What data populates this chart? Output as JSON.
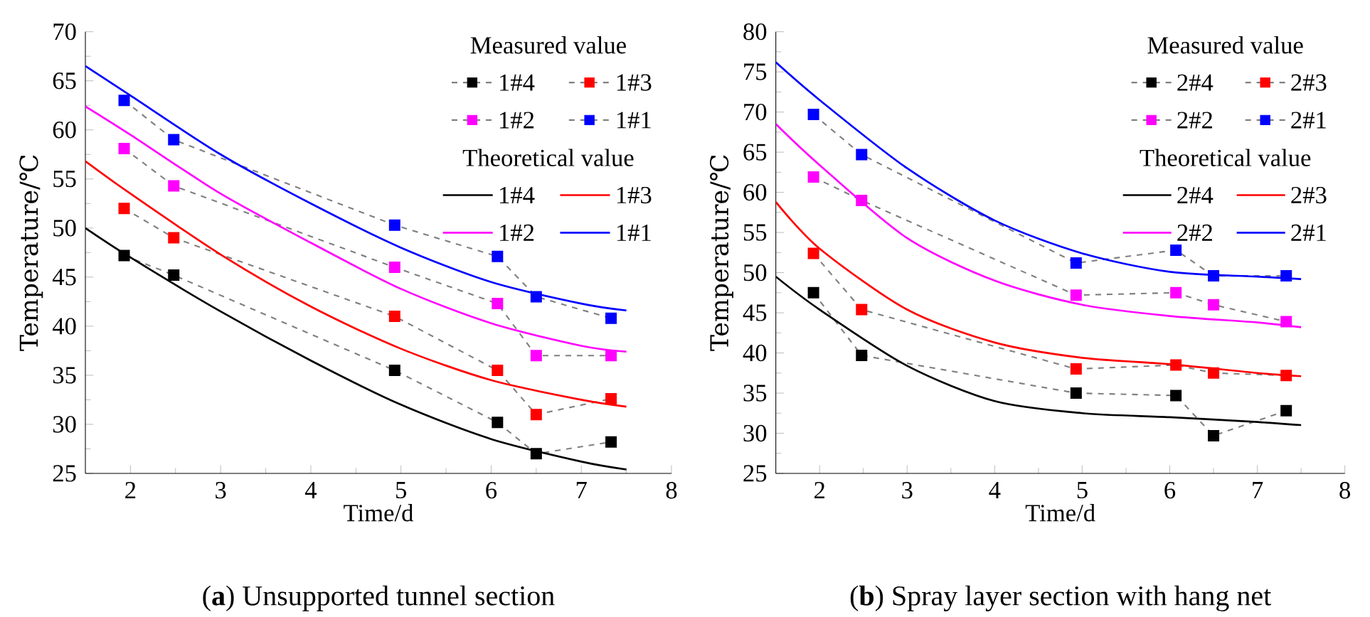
{
  "chart_data": [
    {
      "type": "line",
      "title": "(**a**) Unsupported tunnel section",
      "xlabel": "Time/d",
      "ylabel": "Temperature/℃",
      "legend_title": "Measured value",
      "annotations": [
        "Theoretical value"
      ],
      "legend": "top right",
      "xlim": [
        1.5,
        8
      ],
      "xticks": [
        2,
        3,
        4,
        5,
        6,
        7,
        8
      ],
      "ylim": [
        25,
        70
      ],
      "yticks": [
        25,
        30,
        35,
        40,
        45,
        50,
        55,
        60,
        65,
        70
      ],
      "series": [
        {
          "name": "1#4",
          "color": "#000000",
          "marker": "square",
          "line_style": "dashed",
          "x": [
            1.93,
            2.48,
            4.93,
            6.07,
            6.5,
            7.33
          ],
          "values": [
            47.2,
            45.2,
            35.5,
            30.2,
            27,
            28.2
          ]
        },
        {
          "name": "1#3",
          "color": "#ff0000",
          "marker": "square",
          "line_style": "dashed",
          "x": [
            1.93,
            2.48,
            4.93,
            6.07,
            6.5,
            7.33
          ],
          "values": [
            52,
            49,
            41,
            35.5,
            31,
            32.6
          ]
        },
        {
          "name": "1#2",
          "color": "#ff00ff",
          "marker": "square",
          "line_style": "dashed",
          "x": [
            1.93,
            2.48,
            4.93,
            6.07,
            6.5,
            7.33
          ],
          "values": [
            58.1,
            54.3,
            46,
            42.3,
            37,
            37
          ]
        },
        {
          "name": "1#1",
          "color": "#0000ff",
          "marker": "square",
          "line_style": "dashed",
          "x": [
            1.93,
            2.48,
            4.93,
            6.07,
            6.5,
            7.33
          ],
          "values": [
            63,
            59,
            50.3,
            47.1,
            43,
            40.8
          ]
        },
        {
          "name": "1#4",
          "color": "#000000",
          "marker": "none",
          "line_style": "solid",
          "x": [
            1.5,
            2,
            3,
            4,
            5,
            6,
            7,
            7.5
          ],
          "values": [
            50,
            47,
            41.5,
            36.5,
            32,
            28.5,
            26.2,
            25.4
          ]
        },
        {
          "name": "1#3",
          "color": "#ff0000",
          "marker": "none",
          "line_style": "solid",
          "x": [
            1.5,
            2,
            3,
            4,
            5,
            6,
            7,
            7.5
          ],
          "values": [
            56.8,
            53.5,
            47.3,
            42,
            37.7,
            34.5,
            32.5,
            31.8
          ]
        },
        {
          "name": "1#2",
          "color": "#ff00ff",
          "marker": "none",
          "line_style": "solid",
          "x": [
            1.5,
            2,
            3,
            4,
            5,
            6,
            7,
            7.5
          ],
          "values": [
            62.4,
            59.5,
            53.5,
            48.5,
            43.8,
            40.3,
            38,
            37.4
          ]
        },
        {
          "name": "1#1",
          "color": "#0000ff",
          "marker": "none",
          "line_style": "solid",
          "x": [
            1.5,
            2,
            3,
            4,
            5,
            6,
            7,
            7.5
          ],
          "values": [
            66.5,
            63.5,
            57.5,
            52.5,
            48,
            44.5,
            42.3,
            41.6
          ]
        }
      ]
    },
    {
      "type": "line",
      "title": "(**b**) Spray layer section with hang net",
      "xlabel": "Time/d",
      "ylabel": "Temperature/℃",
      "legend_title": "Measured value",
      "annotations": [
        "Theoretical value"
      ],
      "legend": "top right",
      "xlim": [
        1.5,
        8
      ],
      "xticks": [
        2,
        3,
        4,
        5,
        6,
        7,
        8
      ],
      "ylim": [
        25,
        80
      ],
      "yticks": [
        25,
        30,
        35,
        40,
        45,
        50,
        55,
        60,
        65,
        70,
        75,
        80
      ],
      "series": [
        {
          "name": "2#4",
          "color": "#000000",
          "marker": "square",
          "line_style": "dashed",
          "x": [
            1.93,
            2.48,
            4.93,
            6.07,
            6.5,
            7.33
          ],
          "values": [
            47.5,
            39.7,
            35,
            34.7,
            29.7,
            32.8
          ]
        },
        {
          "name": "2#3",
          "color": "#ff0000",
          "marker": "square",
          "line_style": "dashed",
          "x": [
            1.93,
            2.48,
            4.93,
            6.07,
            6.5,
            7.33
          ],
          "values": [
            52.4,
            45.4,
            38,
            38.5,
            37.5,
            37.2
          ]
        },
        {
          "name": "2#2",
          "color": "#ff00ff",
          "marker": "square",
          "line_style": "dashed",
          "x": [
            1.93,
            2.48,
            4.93,
            6.07,
            6.5,
            7.33
          ],
          "values": [
            61.9,
            59,
            47.2,
            47.5,
            46,
            43.9
          ]
        },
        {
          "name": "2#1",
          "color": "#0000ff",
          "marker": "square",
          "line_style": "dashed",
          "x": [
            1.93,
            2.48,
            4.93,
            6.07,
            6.5,
            7.33
          ],
          "values": [
            69.7,
            64.7,
            51.2,
            52.8,
            49.6,
            49.6
          ]
        },
        {
          "name": "2#4",
          "color": "#000000",
          "marker": "none",
          "line_style": "solid",
          "x": [
            1.5,
            2,
            3,
            4,
            5,
            6,
            7,
            7.5
          ],
          "values": [
            49.5,
            45.4,
            38.4,
            34,
            32.5,
            32,
            31.4,
            31
          ]
        },
        {
          "name": "2#3",
          "color": "#ff0000",
          "marker": "none",
          "line_style": "solid",
          "x": [
            1.5,
            2,
            3,
            4,
            5,
            6,
            7,
            7.5
          ],
          "values": [
            58.8,
            53,
            45.4,
            41.3,
            39.4,
            38.6,
            37.5,
            37.1
          ]
        },
        {
          "name": "2#2",
          "color": "#ff00ff",
          "marker": "none",
          "line_style": "solid",
          "x": [
            1.5,
            2,
            3,
            4,
            5,
            6,
            7,
            7.5
          ],
          "values": [
            68.5,
            63.4,
            54.3,
            49,
            46,
            44.6,
            43.8,
            43.2
          ]
        },
        {
          "name": "2#1",
          "color": "#0000ff",
          "marker": "none",
          "line_style": "solid",
          "x": [
            1.5,
            2,
            3,
            4,
            5,
            6,
            7,
            7.5
          ],
          "values": [
            76.2,
            71.5,
            63,
            56.5,
            52.4,
            50.1,
            49.5,
            49.2
          ]
        }
      ]
    }
  ]
}
